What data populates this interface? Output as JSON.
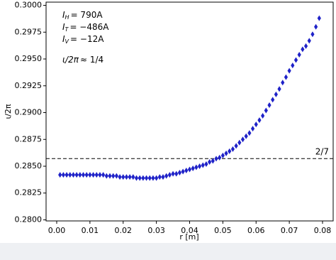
{
  "chart_data": {
    "type": "scatter",
    "xlabel": "r [m]",
    "ylabel": "ι/2π",
    "annotations": [
      {
        "symbol": "I",
        "sub": "H",
        "text": "= 790A"
      },
      {
        "symbol": "I",
        "sub": "T",
        "text": "= −486A"
      },
      {
        "symbol": "I",
        "sub": "V",
        "text": "= −12A"
      },
      {
        "symbol": "ι/2π",
        "sub": "",
        "text": "≈ 1/4"
      }
    ],
    "reference_line": {
      "value": 0.285714,
      "label": "2/7"
    },
    "xlim": [
      -0.0032,
      0.0832
    ],
    "ylim": [
      0.2799,
      0.3003
    ],
    "xticks": [
      {
        "value": 0,
        "label": "0.00"
      },
      {
        "value": 0.01,
        "label": "0.01"
      },
      {
        "value": 0.02,
        "label": "0.02"
      },
      {
        "value": 0.03,
        "label": "0.03"
      },
      {
        "value": 0.04,
        "label": "0.04"
      },
      {
        "value": 0.05,
        "label": "0.05"
      },
      {
        "value": 0.06,
        "label": "0.06"
      },
      {
        "value": 0.07,
        "label": "0.07"
      },
      {
        "value": 0.08,
        "label": "0.08"
      }
    ],
    "yticks": [
      {
        "value": 0.28,
        "label": "0.2800"
      },
      0.2825,
      {
        "value": 0.285,
        "label": "0.2850"
      },
      0.2875,
      {
        "value": 0.29,
        "label": "0.2900"
      },
      0.2925,
      {
        "value": 0.295,
        "label": "0.2950"
      },
      0.2975,
      {
        "value": 0.3,
        "label": "0.3000"
      }
    ],
    "series": [
      {
        "color": "#1f22c8",
        "x": [
          0.001,
          0.002,
          0.003,
          0.004,
          0.005,
          0.006,
          0.007,
          0.008,
          0.009,
          0.01,
          0.011,
          0.012,
          0.013,
          0.014,
          0.015,
          0.016,
          0.017,
          0.018,
          0.019,
          0.02,
          0.021,
          0.022,
          0.023,
          0.024,
          0.025,
          0.026,
          0.027,
          0.028,
          0.029,
          0.03,
          0.031,
          0.032,
          0.033,
          0.034,
          0.035,
          0.036,
          0.037,
          0.038,
          0.039,
          0.04,
          0.041,
          0.042,
          0.043,
          0.044,
          0.045,
          0.046,
          0.047,
          0.048,
          0.049,
          0.05,
          0.051,
          0.052,
          0.053,
          0.054,
          0.055,
          0.056,
          0.057,
          0.058,
          0.059,
          0.06,
          0.061,
          0.062,
          0.063,
          0.064,
          0.065,
          0.066,
          0.067,
          0.068,
          0.069,
          0.07,
          0.071,
          0.072,
          0.073,
          0.074,
          0.075,
          0.076,
          0.077,
          0.078,
          0.079
        ],
        "values": [
          0.2842,
          0.2842,
          0.2842,
          0.2842,
          0.2842,
          0.2842,
          0.2842,
          0.2842,
          0.2842,
          0.2842,
          0.2842,
          0.2842,
          0.2842,
          0.2842,
          0.2841,
          0.2841,
          0.2841,
          0.2841,
          0.284,
          0.284,
          0.284,
          0.284,
          0.284,
          0.2839,
          0.2839,
          0.2839,
          0.2839,
          0.2839,
          0.2839,
          0.2839,
          0.284,
          0.284,
          0.2841,
          0.2842,
          0.2843,
          0.2843,
          0.2844,
          0.2845,
          0.2846,
          0.2847,
          0.2848,
          0.2849,
          0.285,
          0.2851,
          0.2852,
          0.2854,
          0.2855,
          0.2857,
          0.2858,
          0.286,
          0.2862,
          0.2864,
          0.2866,
          0.2869,
          0.2872,
          0.2875,
          0.2878,
          0.2881,
          0.2885,
          0.2889,
          0.2893,
          0.2897,
          0.2902,
          0.2907,
          0.2912,
          0.2917,
          0.2922,
          0.2928,
          0.2933,
          0.2939,
          0.2944,
          0.2949,
          0.2954,
          0.2959,
          0.2962,
          0.2967,
          0.2973,
          0.298,
          0.2988
        ]
      }
    ]
  }
}
